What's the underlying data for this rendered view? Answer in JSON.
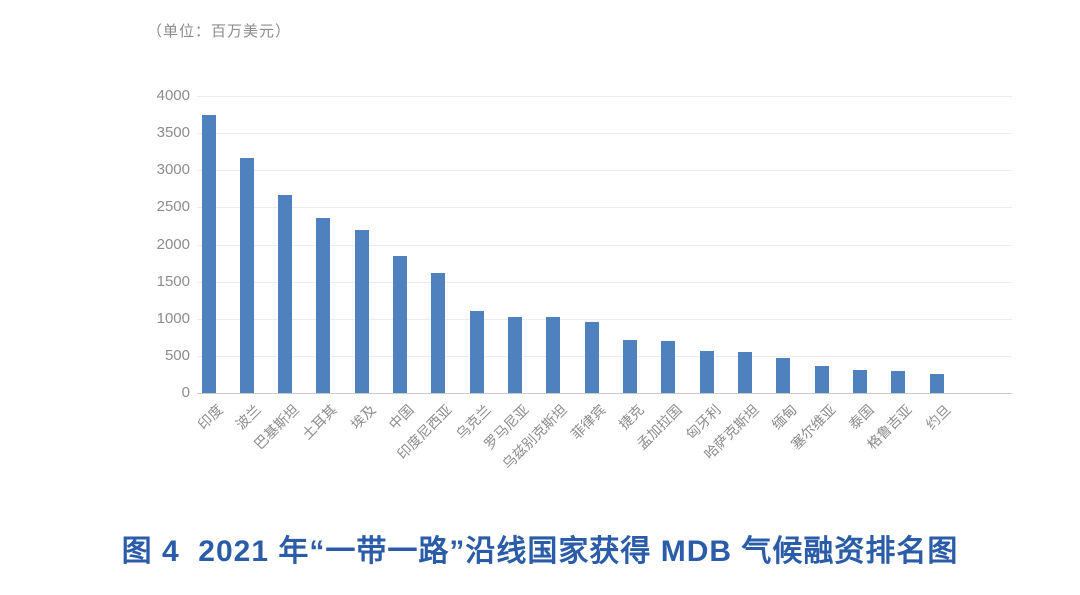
{
  "unit_label": "（单位：百万美元）",
  "caption": "图 4  2021 年“一带一路”沿线国家获得 MDB 气候融资排名图",
  "colors": {
    "bar": "#4E81BD",
    "axis_text": "#8C8C8C",
    "gridline": "#ECECEC",
    "baseline": "#C9C9C9",
    "caption_text": "#2B5CA8"
  },
  "chart_data": {
    "type": "bar",
    "title": "2021 年“一带一路”沿线国家获得 MDB 气候融资排名图",
    "unit": "百万美元",
    "categories": [
      "印度",
      "波兰",
      "巴基斯坦",
      "土耳其",
      "埃及",
      "中国",
      "印度尼西亚",
      "乌克兰",
      "罗马尼亚",
      "乌兹别克斯坦",
      "菲律宾",
      "捷克",
      "孟加拉国",
      "匈牙利",
      "哈萨克斯坦",
      "缅甸",
      "塞尔维亚",
      "泰国",
      "格鲁吉亚",
      "约旦"
    ],
    "values": [
      3740,
      3160,
      2670,
      2360,
      2200,
      1850,
      1620,
      1110,
      1020,
      1020,
      960,
      710,
      700,
      570,
      550,
      470,
      370,
      310,
      300,
      260
    ],
    "xlabel": "",
    "ylabel": "",
    "ylim": [
      0,
      4000
    ],
    "yticks": [
      0,
      500,
      1000,
      1500,
      2000,
      2500,
      3000,
      3500,
      4000
    ],
    "grid": true,
    "legend_position": "none",
    "x_label_rotation_deg": 45
  }
}
